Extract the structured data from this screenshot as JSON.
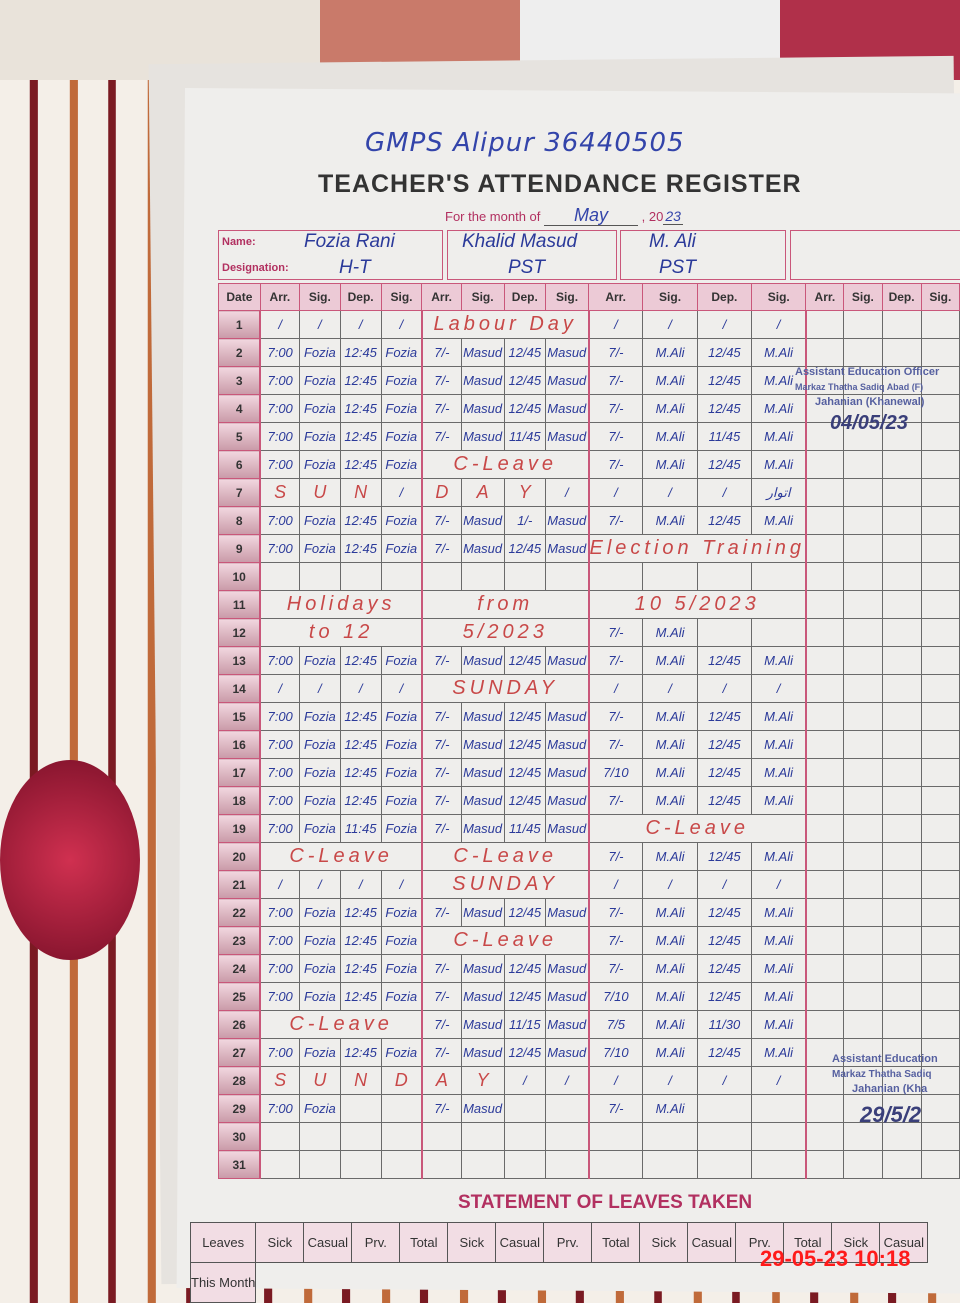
{
  "school": "GMPS Alipur 36440505",
  "title": "TEACHER'S ATTENDANCE REGISTER",
  "month_label": "For the month of",
  "month": "May",
  "year_prefix": ", 20",
  "year": "23",
  "name_label": "Name:",
  "designation_label": "Designation:",
  "teachers": [
    {
      "name": "Fozia Rani",
      "designation": "H-T"
    },
    {
      "name": "Khalid Masud",
      "designation": "PST"
    },
    {
      "name": "M. Ali",
      "designation": "PST"
    },
    {
      "name": "",
      "designation": ""
    }
  ],
  "columns": [
    "Date",
    "Arr.",
    "Sig.",
    "Dep.",
    "Sig."
  ],
  "rows": [
    {
      "date": "1",
      "t": [
        [
          "/",
          "/",
          "/",
          "/"
        ],
        "Labour Day",
        [
          "/",
          "/",
          "/",
          "/"
        ]
      ]
    },
    {
      "date": "2",
      "t": [
        [
          "7:00",
          "Fozia",
          "12:45",
          "Fozia"
        ],
        [
          "7/-",
          "Masud",
          "12/45",
          "Masud"
        ],
        [
          "7/-",
          "M.Ali",
          "12/45",
          "M.Ali"
        ]
      ]
    },
    {
      "date": "3",
      "t": [
        [
          "7:00",
          "Fozia",
          "12:45",
          "Fozia"
        ],
        [
          "7/-",
          "Masud",
          "12/45",
          "Masud"
        ],
        [
          "7/-",
          "M.Ali",
          "12/45",
          "M.Ali"
        ]
      ]
    },
    {
      "date": "4",
      "t": [
        [
          "7:00",
          "Fozia",
          "12:45",
          "Fozia"
        ],
        [
          "7/-",
          "Masud",
          "12/45",
          "Masud"
        ],
        [
          "7/-",
          "M.Ali",
          "12/45",
          "M.Ali"
        ]
      ]
    },
    {
      "date": "5",
      "t": [
        [
          "7:00",
          "Fozia",
          "12:45",
          "Fozia"
        ],
        [
          "7/-",
          "Masud",
          "11/45",
          "Masud"
        ],
        [
          "7/-",
          "M.Ali",
          "11/45",
          "M.Ali"
        ]
      ]
    },
    {
      "date": "6",
      "t": [
        [
          "7:00",
          "Fozia",
          "12:45",
          "Fozia"
        ],
        "C-Leave",
        [
          "7/-",
          "M.Ali",
          "12/45",
          "M.Ali"
        ]
      ]
    },
    {
      "date": "7",
      "t": [
        [
          "S",
          "U",
          "N",
          "/"
        ],
        [
          "D",
          "A",
          "Y",
          "/"
        ],
        [
          "/",
          "/",
          "/",
          "اتوار"
        ]
      ]
    },
    {
      "date": "8",
      "t": [
        [
          "7:00",
          "Fozia",
          "12:45",
          "Fozia"
        ],
        [
          "7/-",
          "Masud",
          "1/-",
          "Masud"
        ],
        [
          "7/-",
          "M.Ali",
          "12/45",
          "M.Ali"
        ]
      ]
    },
    {
      "date": "9",
      "t": [
        [
          "7:00",
          "Fozia",
          "12:45",
          "Fozia"
        ],
        [
          "7/-",
          "Masud",
          "12/45",
          "Masud"
        ],
        "Election Training"
      ]
    },
    {
      "date": "10",
      "t": [
        [
          "",
          "",
          "",
          ""
        ],
        [
          "",
          "",
          "",
          ""
        ],
        [
          "",
          "",
          "",
          ""
        ]
      ]
    },
    {
      "date": "11",
      "t": [
        "Holidays",
        "from",
        "10 5/2023"
      ]
    },
    {
      "date": "12",
      "t": [
        "to 12",
        "5/2023",
        [
          "7/-",
          "M.Ali",
          "",
          ""
        ]
      ]
    },
    {
      "date": "13",
      "t": [
        [
          "7:00",
          "Fozia",
          "12:45",
          "Fozia"
        ],
        [
          "7/-",
          "Masud",
          "12/45",
          "Masud"
        ],
        [
          "7/-",
          "M.Ali",
          "12/45",
          "M.Ali"
        ]
      ]
    },
    {
      "date": "14",
      "t": [
        [
          "/",
          "/",
          "/",
          "/"
        ],
        "SUNDAY",
        [
          "/",
          "/",
          "/",
          "/"
        ]
      ]
    },
    {
      "date": "15",
      "t": [
        [
          "7:00",
          "Fozia",
          "12:45",
          "Fozia"
        ],
        [
          "7/-",
          "Masud",
          "12/45",
          "Masud"
        ],
        [
          "7/-",
          "M.Ali",
          "12/45",
          "M.Ali"
        ]
      ]
    },
    {
      "date": "16",
      "t": [
        [
          "7:00",
          "Fozia",
          "12:45",
          "Fozia"
        ],
        [
          "7/-",
          "Masud",
          "12/45",
          "Masud"
        ],
        [
          "7/-",
          "M.Ali",
          "12/45",
          "M.Ali"
        ]
      ]
    },
    {
      "date": "17",
      "t": [
        [
          "7:00",
          "Fozia",
          "12:45",
          "Fozia"
        ],
        [
          "7/-",
          "Masud",
          "12/45",
          "Masud"
        ],
        [
          "7/10",
          "M.Ali",
          "12/45",
          "M.Ali"
        ]
      ]
    },
    {
      "date": "18",
      "t": [
        [
          "7:00",
          "Fozia",
          "12:45",
          "Fozia"
        ],
        [
          "7/-",
          "Masud",
          "12/45",
          "Masud"
        ],
        [
          "7/-",
          "M.Ali",
          "12/45",
          "M.Ali"
        ]
      ]
    },
    {
      "date": "19",
      "t": [
        [
          "7:00",
          "Fozia",
          "11:45",
          "Fozia"
        ],
        [
          "7/-",
          "Masud",
          "11/45",
          "Masud"
        ],
        "C-Leave"
      ]
    },
    {
      "date": "20",
      "t": [
        "C-Leave",
        "C-Leave",
        [
          "7/-",
          "M.Ali",
          "12/45",
          "M.Ali"
        ]
      ]
    },
    {
      "date": "21",
      "t": [
        [
          "/",
          "/",
          "/",
          "/"
        ],
        "SUNDAY",
        [
          "/",
          "/",
          "/",
          "/"
        ]
      ]
    },
    {
      "date": "22",
      "t": [
        [
          "7:00",
          "Fozia",
          "12:45",
          "Fozia"
        ],
        [
          "7/-",
          "Masud",
          "12/45",
          "Masud"
        ],
        [
          "7/-",
          "M.Ali",
          "12/45",
          "M.Ali"
        ]
      ]
    },
    {
      "date": "23",
      "t": [
        [
          "7:00",
          "Fozia",
          "12:45",
          "Fozia"
        ],
        "C-Leave",
        [
          "7/-",
          "M.Ali",
          "12/45",
          "M.Ali"
        ]
      ]
    },
    {
      "date": "24",
      "t": [
        [
          "7:00",
          "Fozia",
          "12:45",
          "Fozia"
        ],
        [
          "7/-",
          "Masud",
          "12/45",
          "Masud"
        ],
        [
          "7/-",
          "M.Ali",
          "12/45",
          "M.Ali"
        ]
      ]
    },
    {
      "date": "25",
      "t": [
        [
          "7:00",
          "Fozia",
          "12:45",
          "Fozia"
        ],
        [
          "7/-",
          "Masud",
          "12/45",
          "Masud"
        ],
        [
          "7/10",
          "M.Ali",
          "12/45",
          "M.Ali"
        ]
      ]
    },
    {
      "date": "26",
      "t": [
        "C-Leave",
        [
          "7/-",
          "Masud",
          "11/15",
          "Masud"
        ],
        [
          "7/5",
          "M.Ali",
          "11/30",
          "M.Ali"
        ]
      ]
    },
    {
      "date": "27",
      "t": [
        [
          "7:00",
          "Fozia",
          "12:45",
          "Fozia"
        ],
        [
          "7/-",
          "Masud",
          "12/45",
          "Masud"
        ],
        [
          "7/10",
          "M.Ali",
          "12/45",
          "M.Ali"
        ]
      ]
    },
    {
      "date": "28",
      "t": [
        [
          "S",
          "U",
          "N",
          "D"
        ],
        [
          "A",
          "Y",
          "/",
          "/"
        ],
        [
          "/",
          "/",
          "/",
          "/"
        ]
      ]
    },
    {
      "date": "29",
      "t": [
        [
          "7:00",
          "Fozia",
          "",
          ""
        ],
        [
          "7/-",
          "Masud",
          "",
          ""
        ],
        [
          "7/-",
          "M.Ali",
          "",
          ""
        ]
      ]
    },
    {
      "date": "30",
      "t": [
        [
          "",
          "",
          "",
          ""
        ],
        [
          "",
          "",
          "",
          ""
        ],
        [
          "",
          "",
          "",
          ""
        ]
      ]
    },
    {
      "date": "31",
      "t": [
        [
          "",
          "",
          "",
          ""
        ],
        [
          "",
          "",
          "",
          ""
        ],
        [
          "",
          "",
          "",
          ""
        ]
      ]
    }
  ],
  "stamp_top": {
    "lines": [
      "Assistant Education Officer",
      "Markaz Thatha Sadiq Abad (F)",
      "Jahanian (Khanewal)"
    ],
    "date": "04/05/23"
  },
  "stamp_bottom": {
    "lines": [
      "Assistant Education",
      "Markaz Thatha Sadiq",
      "Jahanian (Kha"
    ],
    "date": "29/5/2"
  },
  "statement_title": "STATEMENT OF LEAVES TAKEN",
  "leaves_header": [
    "Leaves",
    "Sick",
    "Casual",
    "Prv.",
    "Total",
    "Sick",
    "Casual",
    "Prv.",
    "Total",
    "Sick",
    "Casual",
    "Prv.",
    "Total",
    "Sick",
    "Casual"
  ],
  "leaves_row": "This Month",
  "timestamp": "29-05-23  10:18",
  "colors": {
    "form_pink": "#c9577a",
    "ink_blue": "#2b3a9a",
    "ink_red": "#c84848",
    "timestamp": "#ff1a1a"
  }
}
